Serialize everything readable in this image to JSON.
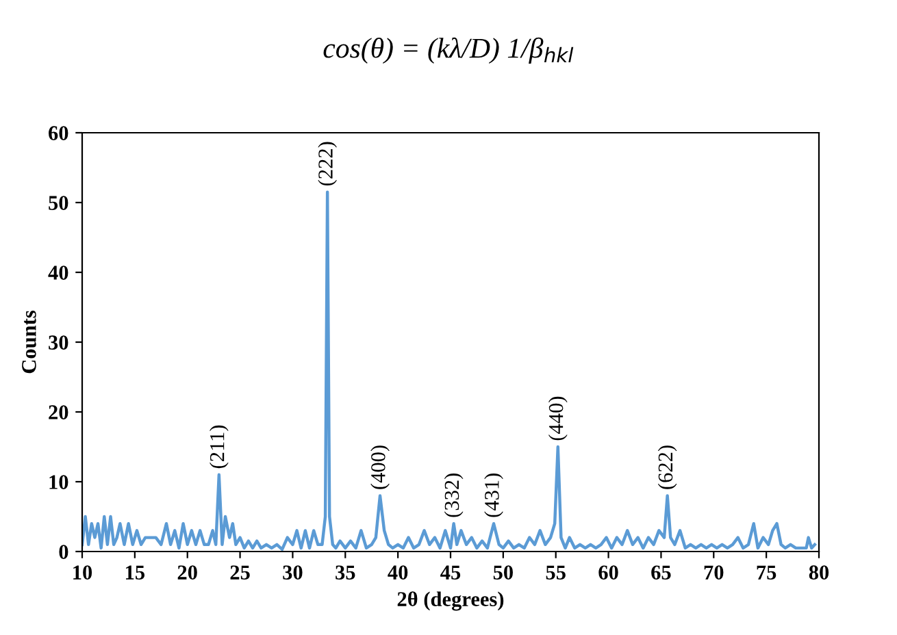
{
  "chart_data": {
    "type": "line",
    "xlabel": "2θ (degrees)",
    "ylabel": "Counts",
    "annotations": [
      "cos(θ) = (kλ/D) 1/β$_{hkl}$",
      {
        "text": "(211)",
        "x": 23,
        "y": 11
      },
      {
        "text": "(222)",
        "x": 33.3,
        "y": 51.5
      },
      {
        "text": "(400)",
        "x": 38.3,
        "y": 8
      },
      {
        "text": "(332)",
        "x": 45.3,
        "y": 4
      },
      {
        "text": "(431)",
        "x": 49.1,
        "y": 4
      },
      {
        "text": "(440)",
        "x": 55.2,
        "y": 15
      },
      {
        "text": "(622)",
        "x": 65.6,
        "y": 8
      }
    ],
    "series": [
      {
        "color": "#5b9bd5",
        "x": [
          10,
          10.3,
          10.6,
          10.9,
          11.2,
          11.5,
          11.8,
          12.1,
          12.4,
          12.7,
          13,
          13.3,
          13.6,
          14,
          14.4,
          14.8,
          15.2,
          15.6,
          16,
          16.5,
          17,
          17.5,
          18,
          18.4,
          18.8,
          19.2,
          19.6,
          20,
          20.4,
          20.8,
          21.2,
          21.6,
          22,
          22.4,
          22.7,
          23,
          23.3,
          23.6,
          24,
          24.3,
          24.6,
          25,
          25.4,
          25.8,
          26.2,
          26.6,
          27,
          27.5,
          28,
          28.5,
          29,
          29.5,
          30,
          30.4,
          30.8,
          31.2,
          31.6,
          32,
          32.4,
          32.8,
          33.1,
          33.3,
          33.5,
          33.8,
          34.1,
          34.5,
          35,
          35.5,
          36,
          36.5,
          37,
          37.5,
          37.9,
          38.3,
          38.7,
          39.1,
          39.5,
          40,
          40.5,
          41,
          41.5,
          42,
          42.5,
          43,
          43.5,
          44,
          44.5,
          45,
          45.3,
          45.6,
          46,
          46.5,
          47,
          47.5,
          48,
          48.5,
          49.1,
          49.6,
          50,
          50.5,
          51,
          51.5,
          52,
          52.5,
          53,
          53.5,
          54,
          54.5,
          54.9,
          55.2,
          55.5,
          55.9,
          56.3,
          56.8,
          57.3,
          57.8,
          58.3,
          58.8,
          59.3,
          59.8,
          60.3,
          60.8,
          61.3,
          61.8,
          62.3,
          62.8,
          63.3,
          63.8,
          64.3,
          64.8,
          65.3,
          65.6,
          65.9,
          66.3,
          66.8,
          67.3,
          67.8,
          68.3,
          68.8,
          69.3,
          69.8,
          70.3,
          70.8,
          71.3,
          71.8,
          72.3,
          72.8,
          73.3,
          73.8,
          74.2,
          74.7,
          75.2,
          75.6,
          76,
          76.4,
          76.8,
          77.3,
          77.8,
          78.3,
          78.8,
          79,
          79.3,
          79.6
        ],
        "values": [
          1,
          5,
          1,
          4,
          2,
          4,
          0.5,
          5,
          1,
          5,
          1,
          2,
          4,
          1,
          4,
          1,
          3,
          1,
          2,
          2,
          2,
          1,
          4,
          1,
          3,
          0.5,
          4,
          1,
          3,
          1,
          3,
          1,
          1,
          3,
          1,
          11,
          1,
          5,
          2,
          4,
          1,
          2,
          0.5,
          1.5,
          0.5,
          1.5,
          0.5,
          1,
          0.5,
          1,
          0.3,
          2,
          1,
          3,
          0.5,
          3,
          0.5,
          3,
          1,
          1,
          5,
          51.5,
          5,
          1,
          0.5,
          1.5,
          0.5,
          1.5,
          0.5,
          3,
          0.5,
          1,
          2,
          8,
          3,
          1,
          0.5,
          1,
          0.5,
          2,
          0.5,
          1,
          3,
          1,
          2,
          0.5,
          3,
          0.5,
          4,
          1,
          3,
          1,
          2,
          0.5,
          1.5,
          0.5,
          4,
          1,
          0.5,
          1.5,
          0.5,
          1,
          0.5,
          2,
          1,
          3,
          1,
          2,
          4,
          15,
          2,
          0.5,
          2,
          0.5,
          1,
          0.5,
          1,
          0.5,
          1,
          2,
          0.5,
          2,
          1,
          3,
          1,
          2,
          0.5,
          2,
          1,
          3,
          2,
          8,
          2,
          1,
          3,
          0.5,
          1,
          0.5,
          1,
          0.5,
          1,
          0.5,
          1,
          0.5,
          1,
          2,
          0.5,
          1,
          4,
          0.5,
          2,
          1,
          3,
          4,
          1,
          0.5,
          1,
          0.5,
          0.5,
          0.5,
          2,
          0.5,
          1
        ]
      }
    ],
    "xlim": [
      10,
      80
    ],
    "xticks": [
      10,
      15,
      20,
      25,
      30,
      35,
      40,
      45,
      50,
      55,
      60,
      65,
      70,
      75,
      80
    ],
    "ylim": [
      0,
      60
    ],
    "yticks": [
      0,
      10,
      20,
      30,
      40,
      50,
      60
    ],
    "grid": false,
    "legend": false,
    "marker": "none",
    "line_style": "solid"
  }
}
